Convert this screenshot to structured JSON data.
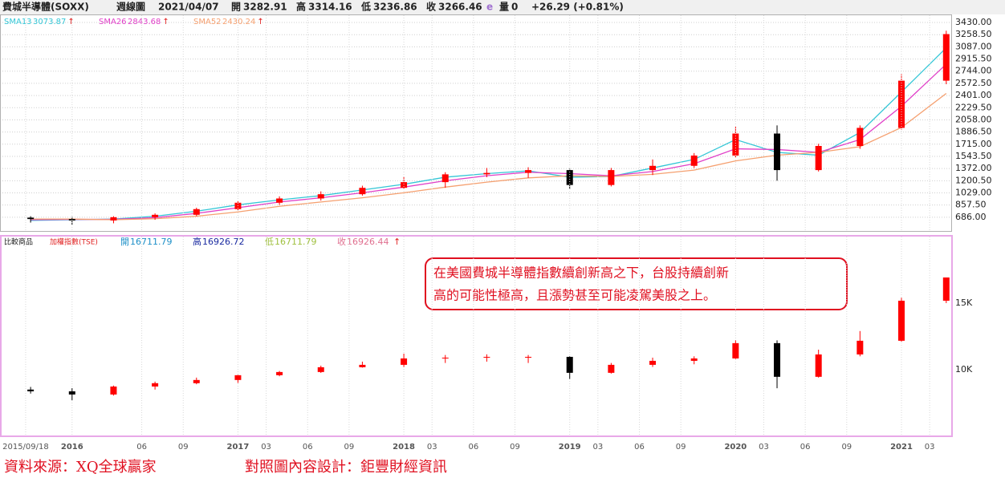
{
  "header": {
    "name": "費城半導體(SOXX)",
    "period": "週線圖",
    "date": "2021/04/07",
    "ohlc_labels": [
      "開",
      "高",
      "低",
      "收"
    ],
    "ohlc": [
      3282.91,
      3314.16,
      3236.86,
      3266.46
    ],
    "e": "e",
    "volume_label": "量",
    "volume": 0,
    "change": "+26.29 (+0.81%)"
  },
  "footer": {
    "source": "資料來源：XQ全球贏家",
    "design": "對照圖內容設計：鉅豐財經資訊"
  },
  "chart_data": [
    {
      "type": "candlestick",
      "up_color": "#ff0000",
      "down_color": "#000000",
      "grid": true,
      "arrow": "↑",
      "x": [
        2015.75,
        2016.0,
        2016.25,
        2016.5,
        2016.75,
        2017.0,
        2017.25,
        2017.5,
        2017.75,
        2018.0,
        2018.25,
        2018.5,
        2018.75,
        2019.0,
        2019.25,
        2019.5,
        2019.75,
        2020.0,
        2020.25,
        2020.5,
        2020.75,
        2021.0,
        2021.27
      ],
      "open": [
        680,
        660,
        640,
        686,
        720,
        800,
        890,
        950,
        1010,
        1100,
        1180,
        1290,
        1310,
        1350,
        1140,
        1350,
        1410,
        1555,
        1865,
        1350,
        1690,
        1945,
        2610
      ],
      "high": [
        700,
        690,
        700,
        740,
        820,
        910,
        980,
        1050,
        1130,
        1260,
        1320,
        1380,
        1390,
        1370,
        1380,
        1500,
        1590,
        1960,
        1980,
        1720,
        1980,
        2700,
        3314.16
      ],
      "low": [
        610,
        580,
        600,
        650,
        700,
        780,
        860,
        920,
        990,
        1080,
        1100,
        1250,
        1240,
        1080,
        1120,
        1280,
        1380,
        1530,
        1200,
        1330,
        1650,
        1920,
        2560
      ],
      "close": [
        660,
        640,
        686,
        720,
        800,
        890,
        950,
        1010,
        1100,
        1180,
        1290,
        1310,
        1350,
        1140,
        1350,
        1410,
        1555,
        1865,
        1350,
        1690,
        1945,
        2610,
        3266.46
      ],
      "series": [
        {
          "name": "SMA13",
          "color": "#33c6d6",
          "values": [
            640,
            650,
            660,
            700,
            770,
            860,
            930,
            990,
            1070,
            1150,
            1250,
            1300,
            1340,
            1250,
            1260,
            1380,
            1500,
            1780,
            1600,
            1560,
            1880,
            2450,
            3073.87
          ]
        },
        {
          "name": "SMA26",
          "color": "#e040c8",
          "values": [
            650,
            655,
            655,
            680,
            740,
            820,
            900,
            960,
            1030,
            1110,
            1200,
            1270,
            1320,
            1300,
            1270,
            1330,
            1440,
            1650,
            1640,
            1600,
            1780,
            2250,
            2843.68
          ]
        },
        {
          "name": "SMA52",
          "color": "#f5a070",
          "values": [
            660,
            660,
            650,
            665,
            700,
            760,
            840,
            900,
            960,
            1030,
            1110,
            1180,
            1240,
            1270,
            1260,
            1290,
            1350,
            1480,
            1560,
            1600,
            1680,
            1950,
            2430.24
          ]
        }
      ],
      "xlim": [
        2015.58,
        2021.3
      ],
      "ylim": [
        492,
        3521
      ],
      "yticks": [
        {
          "value": 686,
          "label": "686.00"
        },
        {
          "value": 857.5,
          "label": "857.50"
        },
        {
          "value": 1029,
          "label": "1029.00"
        },
        {
          "value": 1200.5,
          "label": "1200.50"
        },
        {
          "value": 1372,
          "label": "1372.00"
        },
        {
          "value": 1543.5,
          "label": "1543.50"
        },
        {
          "value": 1715,
          "label": "1715.00"
        },
        {
          "value": 1886.5,
          "label": "1886.50"
        },
        {
          "value": 2058,
          "label": "2058.00"
        },
        {
          "value": 2229.5,
          "label": "2229.50"
        },
        {
          "value": 2401,
          "label": "2401.00"
        },
        {
          "value": 2572.5,
          "label": "2572.50"
        },
        {
          "value": 2744,
          "label": "2744.00"
        },
        {
          "value": 2915.5,
          "label": "2915.50"
        },
        {
          "value": 3087,
          "label": "3087.00"
        },
        {
          "value": 3258.5,
          "label": "3258.50"
        },
        {
          "value": 3430,
          "label": "3430.00"
        }
      ]
    },
    {
      "type": "candlestick",
      "up_color": "#ff0000",
      "down_color": "#000000",
      "grid": false,
      "legend": {
        "compare_label": "比較商品",
        "compare_name": "加權指數(TSE)",
        "ohlc_labels": [
          "開",
          "高",
          "低",
          "收"
        ],
        "ohlc": [
          16711.79,
          16926.72,
          16711.79,
          16926.44
        ],
        "arrow": "↑"
      },
      "annotation": [
        "在美國費城半導體指數續創新高之下，台股持續創新",
        "高的可能性極高，且漲勢甚至可能凌駕美股之上。"
      ],
      "x": [
        2015.75,
        2016.0,
        2016.25,
        2016.5,
        2016.75,
        2017.0,
        2017.25,
        2017.5,
        2017.75,
        2018.0,
        2018.25,
        2018.5,
        2018.75,
        2019.0,
        2019.25,
        2019.5,
        2019.75,
        2020.0,
        2020.25,
        2020.5,
        2020.75,
        2021.0,
        2021.27
      ],
      "open": [
        8500,
        8370,
        8130,
        8730,
        8980,
        9220,
        9580,
        9820,
        10180,
        10360,
        10840,
        10900,
        10960,
        10960,
        9760,
        10360,
        10660,
        10840,
        11990,
        9460,
        11140,
        12170,
        15180
      ],
      "high": [
        8700,
        8600,
        8800,
        9100,
        9400,
        9600,
        9900,
        10300,
        10600,
        11200,
        11100,
        11150,
        11100,
        11000,
        10500,
        10900,
        11000,
        12200,
        12200,
        11500,
        12900,
        15400,
        16926.72
      ],
      "low": [
        8200,
        7700,
        8050,
        8500,
        8900,
        9000,
        9500,
        9750,
        10150,
        10200,
        10500,
        10600,
        10500,
        9300,
        9700,
        10200,
        10400,
        10800,
        8600,
        9400,
        11000,
        12100,
        15000
      ],
      "close": [
        8370,
        8130,
        8730,
        8980,
        9220,
        9580,
        9820,
        10180,
        10360,
        10840,
        10900,
        10960,
        10960,
        9760,
        10360,
        10660,
        10840,
        11990,
        9460,
        11140,
        12170,
        15180,
        16926.44
      ],
      "xlim": [
        2015.58,
        2021.3
      ],
      "ylim": [
        5050,
        20000
      ],
      "yticks": [
        {
          "value": 10000,
          "label": "10K"
        },
        {
          "value": 15000,
          "label": "15K"
        }
      ],
      "xticks": [
        {
          "value": 2015.72,
          "label": "2015/09/18"
        },
        2016,
        {
          "value": 2016.42,
          "label": "06"
        },
        {
          "value": 2016.67,
          "label": "09"
        },
        2017,
        {
          "value": 2017.17,
          "label": "03"
        },
        {
          "value": 2017.42,
          "label": "06"
        },
        {
          "value": 2017.67,
          "label": "09"
        },
        2018,
        {
          "value": 2018.17,
          "label": "03"
        },
        {
          "value": 2018.42,
          "label": "06"
        },
        {
          "value": 2018.67,
          "label": "09"
        },
        2019,
        {
          "value": 2019.17,
          "label": "03"
        },
        {
          "value": 2019.42,
          "label": "06"
        },
        {
          "value": 2019.67,
          "label": "09"
        },
        2020,
        {
          "value": 2020.17,
          "label": "03"
        },
        {
          "value": 2020.42,
          "label": "06"
        },
        {
          "value": 2020.67,
          "label": "09"
        },
        2021,
        {
          "value": 2021.17,
          "label": "03"
        }
      ]
    }
  ]
}
